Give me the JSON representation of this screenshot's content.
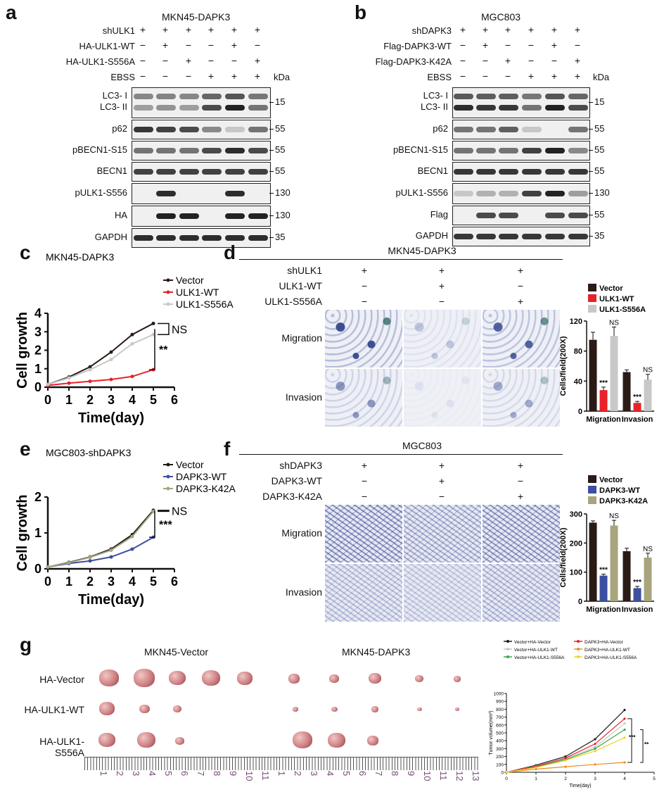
{
  "panel_a": {
    "label": "a",
    "title": "MKN45-DAPK3",
    "conditions": [
      {
        "name": "shULK1",
        "signs": [
          "+",
          "+",
          "+",
          "+",
          "+",
          "+"
        ]
      },
      {
        "name": "HA-ULK1-WT",
        "signs": [
          "−",
          "+",
          "−",
          "−",
          "+",
          "−"
        ]
      },
      {
        "name": "HA-ULK1-S556A",
        "signs": [
          "−",
          "−",
          "+",
          "−",
          "−",
          "+"
        ]
      },
      {
        "name": "EBSS",
        "signs": [
          "−",
          "−",
          "−",
          "+",
          "+",
          "+"
        ]
      }
    ],
    "kda_label": "kDa",
    "blots": [
      {
        "name": "LC3- I",
        "name2": "LC3- II",
        "kda": "15"
      },
      {
        "name": "p62",
        "kda": "55"
      },
      {
        "name": "pBECN1-S15",
        "kda": "55"
      },
      {
        "name": "BECN1",
        "kda": "55"
      },
      {
        "name": "pULK1-S556",
        "kda": "130"
      },
      {
        "name": "HA",
        "kda": "130"
      },
      {
        "name": "GAPDH",
        "kda": "35"
      }
    ]
  },
  "panel_b": {
    "label": "b",
    "title": "MGC803",
    "conditions": [
      {
        "name": "shDAPK3",
        "signs": [
          "+",
          "+",
          "+",
          "+",
          "+",
          "+"
        ]
      },
      {
        "name": "Flag-DAPK3-WT",
        "signs": [
          "−",
          "+",
          "−",
          "−",
          "+",
          "−"
        ]
      },
      {
        "name": "Flag-DAPK3-K42A",
        "signs": [
          "−",
          "−",
          "+",
          "−",
          "−",
          "+"
        ]
      },
      {
        "name": "EBSS",
        "signs": [
          "−",
          "−",
          "−",
          "+",
          "+",
          "+"
        ]
      }
    ],
    "kda_label": "kDa",
    "blots": [
      {
        "name": "LC3- I",
        "name2": "LC3- II",
        "kda": "15"
      },
      {
        "name": "p62",
        "kda": "55"
      },
      {
        "name": "pBECN1-S15",
        "kda": "55"
      },
      {
        "name": "BECN1",
        "kda": "55"
      },
      {
        "name": "pULK1-S556",
        "kda": "130"
      },
      {
        "name": "Flag",
        "kda": "55"
      },
      {
        "name": "GAPDH",
        "kda": "35"
      }
    ]
  },
  "panel_c": {
    "label": "c",
    "significance": [
      "NS",
      "**"
    ]
  },
  "panel_d": {
    "label": "d",
    "title": "MKN45-DAPK3",
    "conditions": [
      {
        "name": "shULK1",
        "signs": [
          "+",
          "+",
          "+"
        ]
      },
      {
        "name": "ULK1-WT",
        "signs": [
          "−",
          "+",
          "−"
        ]
      },
      {
        "name": "ULK1-S556A",
        "signs": [
          "−",
          "−",
          "+"
        ]
      }
    ],
    "rows": [
      "Migration",
      "Invasion"
    ]
  },
  "panel_e": {
    "label": "e",
    "significance": [
      "NS",
      "***"
    ]
  },
  "panel_f": {
    "label": "f",
    "title": "MGC803",
    "conditions": [
      {
        "name": "shDAPK3",
        "signs": [
          "+",
          "+",
          "+"
        ]
      },
      {
        "name": "DAPK3-WT",
        "signs": [
          "−",
          "+",
          "−"
        ]
      },
      {
        "name": "DAPK3-K42A",
        "signs": [
          "−",
          "−",
          "+"
        ]
      }
    ],
    "rows": [
      "Migration",
      "Invasion"
    ]
  },
  "panel_g": {
    "label": "g",
    "group1": "MKN45-Vector",
    "group2": "MKN45-DAPK3",
    "rows": [
      "HA-Vector",
      "HA-ULK1-WT",
      "HA-ULK1-S556A"
    ],
    "ruler_numbers": [
      "1",
      "2",
      "3",
      "4",
      "5",
      "6",
      "7",
      "8",
      "9",
      "10",
      "11",
      "1",
      "2",
      "3",
      "4",
      "5",
      "6",
      "7",
      "8",
      "9",
      "10",
      "11",
      "12",
      "13"
    ],
    "significance": [
      "***",
      "**"
    ]
  },
  "colors": {
    "black": "#1a1a1a",
    "red": "#e8222a",
    "gray": "#c8c8c8",
    "blue": "#3d4fa0",
    "khaki": "#a8a47e",
    "dark_brown": "#2a1b16",
    "green": "#3aa84a",
    "orange": "#f08a1c",
    "yellow": "#f2d12a"
  },
  "chart_data": [
    {
      "type": "line",
      "title": "MKN45-DAPK3",
      "xlabel": "Time(day)",
      "ylabel": "Cell growth",
      "x": [
        0,
        1,
        2,
        3,
        4,
        5
      ],
      "xlim": [
        0,
        6
      ],
      "ylim": [
        0,
        4
      ],
      "xticks": [
        "0",
        "1",
        "2",
        "3",
        "4",
        "5",
        "6"
      ],
      "yticks": [
        "0",
        "1",
        "2",
        "3",
        "4"
      ],
      "series": [
        {
          "name": "Vector",
          "values": [
            0.15,
            0.55,
            1.1,
            1.9,
            2.85,
            3.45
          ]
        },
        {
          "name": "ULK1-WT",
          "values": [
            0.1,
            0.22,
            0.32,
            0.42,
            0.58,
            0.95
          ]
        },
        {
          "name": "ULK1-S556A",
          "values": [
            0.15,
            0.5,
            0.95,
            1.5,
            2.35,
            2.85
          ]
        }
      ]
    },
    {
      "type": "bar",
      "ylabel": "Cells/field(200X)",
      "categories": [
        "Migration",
        "Invasion"
      ],
      "ylim": [
        0,
        120
      ],
      "yticks": [
        "0",
        "40",
        "80",
        "120"
      ],
      "series": [
        {
          "name": "Vector",
          "values": [
            95,
            52
          ]
        },
        {
          "name": "ULK1-WT",
          "values": [
            28,
            11
          ]
        },
        {
          "name": "ULK1-S556A",
          "values": [
            100,
            42
          ]
        }
      ],
      "annotations": [
        "***",
        "NS",
        "***",
        "NS"
      ]
    },
    {
      "type": "line",
      "title": "MGC803-shDAPK3",
      "xlabel": "Time(day)",
      "ylabel": "Cell growth",
      "x": [
        0,
        1,
        2,
        3,
        4,
        5
      ],
      "xlim": [
        0,
        6
      ],
      "ylim": [
        0,
        2
      ],
      "xticks": [
        "0",
        "1",
        "2",
        "3",
        "4",
        "5",
        "6"
      ],
      "yticks": [
        "0",
        "1",
        "2"
      ],
      "series": [
        {
          "name": "Vector",
          "values": [
            0.05,
            0.18,
            0.33,
            0.55,
            0.95,
            1.63
          ]
        },
        {
          "name": "DAPK3-WT",
          "values": [
            0.05,
            0.15,
            0.22,
            0.33,
            0.55,
            0.88
          ]
        },
        {
          "name": "DAPK3-K42A",
          "values": [
            0.05,
            0.17,
            0.32,
            0.52,
            0.9,
            1.6
          ]
        }
      ]
    },
    {
      "type": "bar",
      "ylabel": "Cells/field(200X)",
      "categories": [
        "Migration",
        "Invasion"
      ],
      "ylim": [
        0,
        300
      ],
      "yticks": [
        "0",
        "100",
        "200",
        "300"
      ],
      "series": [
        {
          "name": "Vector",
          "values": [
            270,
            172
          ]
        },
        {
          "name": "DAPK3-WT",
          "values": [
            88,
            45
          ]
        },
        {
          "name": "DAPK3-K42A",
          "values": [
            260,
            150
          ]
        }
      ],
      "annotations": [
        "***",
        "NS",
        "***",
        "NS"
      ]
    },
    {
      "type": "line",
      "xlabel": "Time(day)",
      "ylabel": "Tumor volume(mm³)",
      "x": [
        0,
        1,
        2,
        3,
        4
      ],
      "xlim": [
        0,
        5
      ],
      "ylim": [
        0,
        1000
      ],
      "xticks": [
        "0",
        "1",
        "2",
        "3",
        "4",
        "5"
      ],
      "yticks": [
        "0",
        "100",
        "200",
        "300",
        "400",
        "500",
        "600",
        "700",
        "800",
        "900",
        "1000"
      ],
      "series": [
        {
          "name": "Vector+HA-Vector",
          "values": [
            0,
            90,
            200,
            420,
            790
          ]
        },
        {
          "name": "Vector+HA-ULK1-WT",
          "values": [
            0,
            80,
            170,
            320,
            620
          ]
        },
        {
          "name": "Vector+HA-ULK1-S556A",
          "values": [
            0,
            70,
            160,
            300,
            540
          ]
        },
        {
          "name": "DAPK3+HA-Vector",
          "values": [
            0,
            75,
            180,
            360,
            680
          ]
        },
        {
          "name": "DAPK3+HA-ULK1-WT",
          "values": [
            0,
            40,
            70,
            100,
            125
          ]
        },
        {
          "name": "DAPK3+HA-ULK1-S556A",
          "values": [
            0,
            60,
            150,
            270,
            440
          ]
        }
      ]
    }
  ]
}
